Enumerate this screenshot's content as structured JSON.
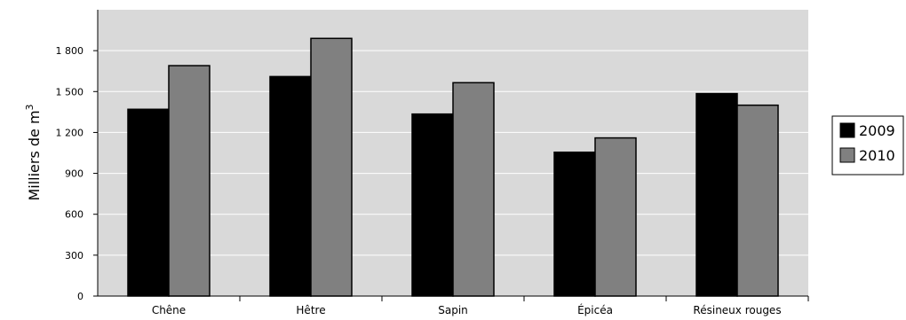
{
  "chart_data": {
    "type": "bar",
    "ylabel": "Milliers de m",
    "ylabel_superscript": "3",
    "ylim": [
      0,
      2100
    ],
    "yticks": [
      0,
      300,
      600,
      900,
      1200,
      1500,
      1800
    ],
    "ytick_labels": [
      "0",
      "300",
      "600",
      "900",
      "1 200",
      "1 500",
      "1 800"
    ],
    "categories": [
      "Chêne",
      "Hêtre",
      "Sapin",
      "Épicéa",
      "Résineux rouges"
    ],
    "series": [
      {
        "name": "2009",
        "values": [
          1370,
          1610,
          1335,
          1055,
          1485
        ],
        "color": "#000000"
      },
      {
        "name": "2010",
        "values": [
          1690,
          1890,
          1565,
          1160,
          1400
        ],
        "color": "#808080"
      }
    ],
    "plot_background": "#d9d9d9",
    "grid": true,
    "legend_position": "right"
  }
}
